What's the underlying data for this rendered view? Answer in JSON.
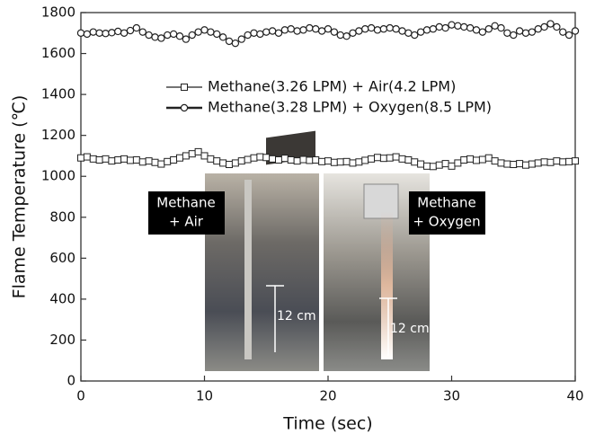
{
  "chart_data": {
    "type": "line",
    "x_label": "Time (sec)",
    "y_label": "Flame Temperature (℃)",
    "x": [
      0,
      0.5,
      1,
      1.5,
      2,
      2.5,
      3,
      3.5,
      4,
      4.5,
      5,
      5.5,
      6,
      6.5,
      7,
      7.5,
      8,
      8.5,
      9,
      9.5,
      10,
      10.5,
      11,
      11.5,
      12,
      12.5,
      13,
      13.5,
      14,
      14.5,
      15,
      15.5,
      16,
      16.5,
      17,
      17.5,
      18,
      18.5,
      19,
      19.5,
      20,
      20.5,
      21,
      21.5,
      22,
      22.5,
      23,
      23.5,
      24,
      24.5,
      25,
      25.5,
      26,
      26.5,
      27,
      27.5,
      28,
      28.5,
      29,
      29.5,
      30,
      30.5,
      31,
      31.5,
      32,
      32.5,
      33,
      33.5,
      34,
      34.5,
      35,
      35.5,
      36,
      36.5,
      37,
      37.5,
      38,
      38.5,
      39,
      39.5,
      40
    ],
    "series": [
      {
        "name": "Methane(3.26 LPM) + Air(4.2 LPM)",
        "color": "#222222",
        "marker": "square",
        "values": [
          1090,
          1095,
          1085,
          1080,
          1085,
          1075,
          1080,
          1085,
          1078,
          1080,
          1070,
          1075,
          1068,
          1060,
          1072,
          1080,
          1090,
          1100,
          1110,
          1120,
          1100,
          1085,
          1075,
          1065,
          1058,
          1065,
          1075,
          1082,
          1090,
          1095,
          1092,
          1085,
          1080,
          1088,
          1080,
          1075,
          1082,
          1078,
          1080,
          1072,
          1075,
          1068,
          1070,
          1072,
          1065,
          1070,
          1078,
          1085,
          1092,
          1088,
          1090,
          1095,
          1085,
          1080,
          1070,
          1060,
          1050,
          1048,
          1055,
          1062,
          1050,
          1065,
          1080,
          1085,
          1078,
          1082,
          1090,
          1075,
          1065,
          1060,
          1058,
          1062,
          1055,
          1060,
          1065,
          1070,
          1068,
          1075,
          1070,
          1072,
          1075
        ]
      },
      {
        "name": "Methane(3.28 LPM) + Oxygen(8.5 LPM)",
        "color": "#222222",
        "marker": "circle",
        "values": [
          1700,
          1695,
          1705,
          1700,
          1698,
          1702,
          1708,
          1700,
          1712,
          1725,
          1705,
          1690,
          1680,
          1675,
          1690,
          1695,
          1685,
          1670,
          1690,
          1705,
          1715,
          1705,
          1695,
          1680,
          1660,
          1650,
          1670,
          1690,
          1700,
          1695,
          1705,
          1710,
          1700,
          1715,
          1720,
          1710,
          1715,
          1725,
          1720,
          1710,
          1720,
          1705,
          1690,
          1685,
          1700,
          1710,
          1720,
          1725,
          1715,
          1720,
          1725,
          1720,
          1710,
          1700,
          1690,
          1705,
          1715,
          1720,
          1730,
          1725,
          1740,
          1735,
          1730,
          1725,
          1715,
          1705,
          1720,
          1735,
          1725,
          1700,
          1690,
          1710,
          1700,
          1705,
          1720,
          1730,
          1745,
          1730,
          1705,
          1690,
          1710
        ]
      }
    ],
    "xlim": [
      0,
      40
    ],
    "ylim": [
      0,
      1800
    ],
    "xticks": [
      0,
      10,
      20,
      30,
      40
    ],
    "yticks": [
      0,
      200,
      400,
      600,
      800,
      1000,
      1200,
      1400,
      1600,
      1800
    ],
    "legend": "upper center",
    "insets": [
      {
        "label": [
          "Methane",
          "+ Air"
        ],
        "scale": "12 cm"
      },
      {
        "label": [
          "Methane",
          "+ Oxygen"
        ],
        "scale": "12 cm"
      }
    ]
  }
}
